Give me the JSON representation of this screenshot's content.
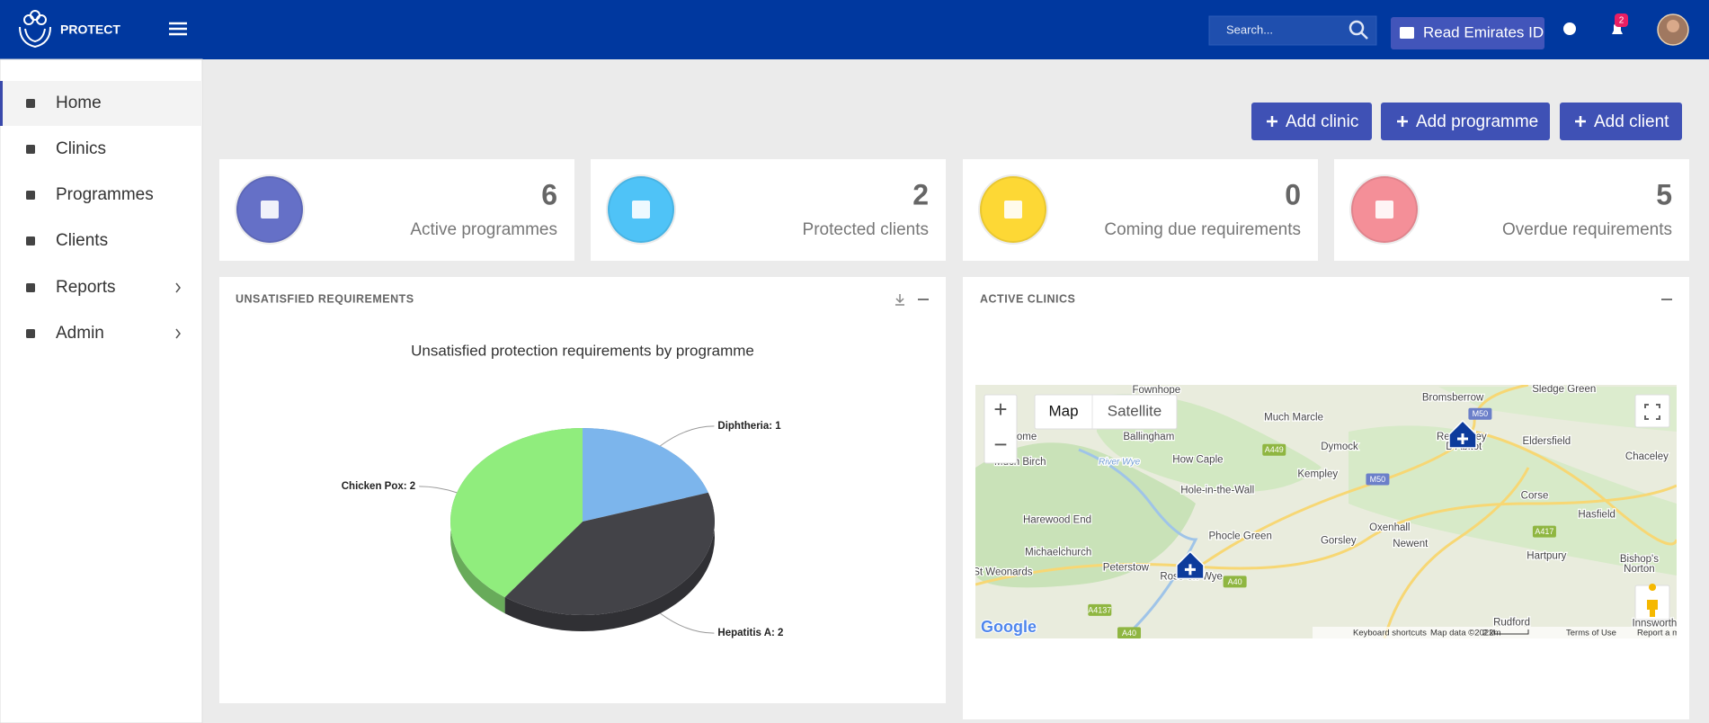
{
  "header": {
    "brand": "PROTECT",
    "search_placeholder": "Search...",
    "read_id_button": "Read Emirates ID",
    "notification_count": 2
  },
  "sidebar": {
    "items": [
      "Home",
      "Clinics",
      "Programmes",
      "Clients",
      "Reports",
      "Admin"
    ]
  },
  "actions": [
    "Add clinic",
    "Add programme",
    "Add client"
  ],
  "stats": [
    {
      "value": 6,
      "label": "Active programmes"
    },
    {
      "value": 2,
      "label": "Protected clients"
    },
    {
      "value": 0,
      "label": "Coming due requirements"
    },
    {
      "value": 5,
      "label": "Overdue requirements"
    }
  ],
  "panels": {
    "requirements": "UNSATISFIED REQUIREMENTS",
    "clinics": "ACTIVE CLINICS"
  },
  "chart_data": {
    "type": "pie",
    "title": "Unsatisfied protection requirements by programme",
    "categories": [
      "Diphtheria",
      "Hepatitis A",
      "Chicken Pox"
    ],
    "values": [
      1,
      2,
      2
    ],
    "value_labels": [
      "Diphtheria: 1",
      "Hepatitis A: 2",
      "Chicken Pox: 2"
    ],
    "colors": [
      "#7cb5ec",
      "#434348",
      "#90ed7d"
    ]
  },
  "map": {
    "controls": {
      "zoom_in": "+",
      "zoom_out": "−",
      "map": "Map",
      "satellite": "Satellite"
    },
    "labels": [
      "Fownhope",
      "Bromsberrow",
      "Sledge Green",
      "Much Marcle",
      "Dymock",
      "Ballingham",
      "Eldersfield",
      "Chaceley",
      "ome",
      "Much Birch",
      "How Caple",
      "Kempley",
      "River Wye",
      "Hole-in-the-Wall",
      "Corse",
      "Hasfield",
      "Harewood End",
      "Phocle Green",
      "Oxenhall",
      "Gorsley",
      "Newent",
      "Hartpury",
      "Bishop's",
      "Norton",
      "Michaelchurch",
      "Peterstow",
      "St Weonards",
      "Rudford",
      "Innsworth",
      "Ross-on-Wye",
      "Redmarley",
      "D'Abitot"
    ],
    "roads": [
      "M50",
      "A449",
      "M50",
      "A417",
      "A40",
      "A4137",
      "A40"
    ],
    "logo": "Google",
    "footer": [
      "Keyboard shortcuts",
      "Map data ©2022",
      "2 km",
      "Terms of Use",
      "Report a map error"
    ]
  }
}
